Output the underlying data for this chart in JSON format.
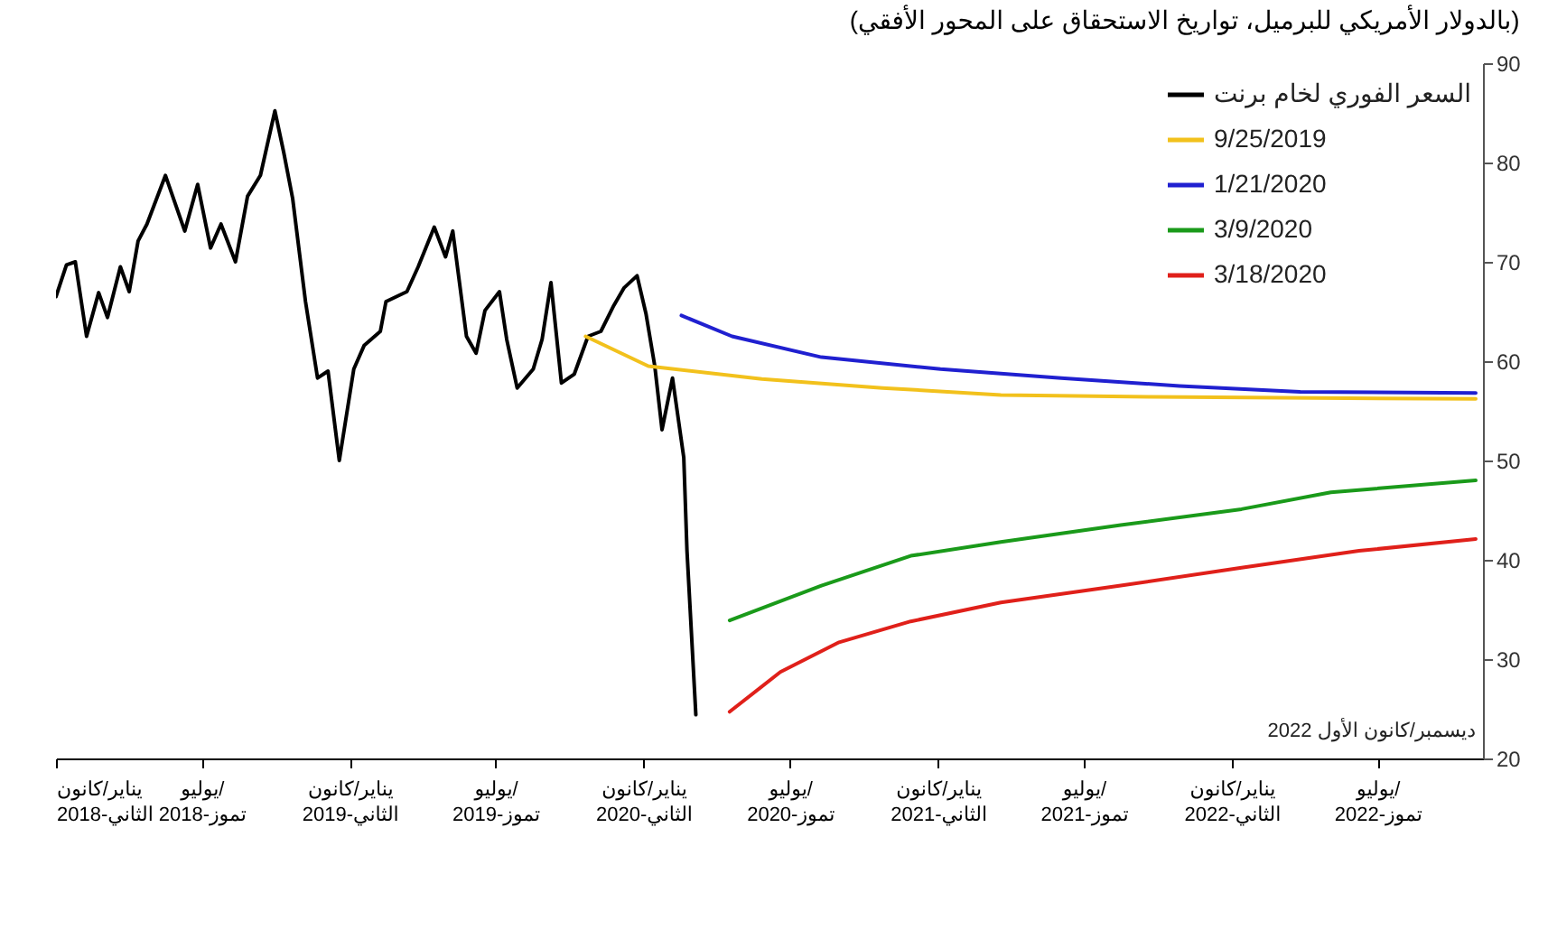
{
  "chart_data": {
    "type": "line",
    "title": "(بالدولار الأمريكي للبرميل، تواريخ الاستحقاق على المحور الأفقي)",
    "annotations": [
      "ديسمبر/كانون الأول 2022"
    ],
    "xlim": [
      "2018-01-01",
      "2022-11-09"
    ],
    "xticks": [
      {
        "value": "2018-01-01",
        "label": "يناير/كانون\nالثاني-2018"
      },
      {
        "value": "2018-07-01",
        "label": "يوليو/\nتموز-2018"
      },
      {
        "value": "2019-01-01",
        "label": "يناير/كانون\nالثاني-2019"
      },
      {
        "value": "2019-07-01",
        "label": "يوليو/\nتموز-2019"
      },
      {
        "value": "2020-01-01",
        "label": "يناير/كانون\nالثاني-2020"
      },
      {
        "value": "2020-07-01",
        "label": "يوليو/\nتموز-2020"
      },
      {
        "value": "2021-01-01",
        "label": "يناير/كانون\nالثاني-2021"
      },
      {
        "value": "2021-07-01",
        "label": "يوليو/\nتموز-2021"
      },
      {
        "value": "2022-01-01",
        "label": "يناير/كانون\nالثاني-2022"
      },
      {
        "value": "2022-07-01",
        "label": "يوليو/\nتموز-2022"
      }
    ],
    "ylim": [
      20,
      90
    ],
    "yticks": [
      20,
      30,
      40,
      50,
      60,
      70,
      80,
      90
    ],
    "grid": false,
    "legend": "top right",
    "series": [
      {
        "name": "السعر الفوري لخام برنت",
        "color": "#000000",
        "x": [
          "2018-01-01",
          "2018-01-14",
          "2018-01-25",
          "2018-02-08",
          "2018-02-23",
          "2018-03-06",
          "2018-03-22",
          "2018-04-02",
          "2018-04-13",
          "2018-04-24",
          "2018-05-17",
          "2018-06-10",
          "2018-06-26",
          "2018-07-12",
          "2018-07-25",
          "2018-08-12",
          "2018-08-27",
          "2018-09-12",
          "2018-09-30",
          "2018-10-11",
          "2018-10-22",
          "2018-11-07",
          "2018-11-22",
          "2018-12-05",
          "2018-12-19",
          "2019-01-06",
          "2019-01-19",
          "2019-02-08",
          "2019-02-15",
          "2019-03-13",
          "2019-03-27",
          "2019-04-16",
          "2019-04-30",
          "2019-05-09",
          "2019-05-26",
          "2019-06-07",
          "2019-06-18",
          "2019-07-06",
          "2019-07-15",
          "2019-07-28",
          "2019-08-17",
          "2019-08-28",
          "2019-09-08",
          "2019-09-21",
          "2019-10-07",
          "2019-10-24",
          "2019-11-09",
          "2019-11-25",
          "2019-12-08",
          "2019-12-24",
          "2020-01-04",
          "2020-01-15",
          "2020-01-24",
          "2020-02-06",
          "2020-02-20",
          "2020-02-24",
          "2020-03-06"
        ],
        "values": [
          66.5,
          69.7,
          70.0,
          62.5,
          66.9,
          64.4,
          69.5,
          67.0,
          72.1,
          73.8,
          78.7,
          73.1,
          77.8,
          71.4,
          73.8,
          70.0,
          76.6,
          78.7,
          85.2,
          81.0,
          76.4,
          66.0,
          58.3,
          59.0,
          50.0,
          59.2,
          61.6,
          63.0,
          66.0,
          67.0,
          69.5,
          73.5,
          70.5,
          73.1,
          62.5,
          60.8,
          65.1,
          67.0,
          62.2,
          57.3,
          59.2,
          62.2,
          67.9,
          57.8,
          58.7,
          62.5,
          63.0,
          65.6,
          67.4,
          68.6,
          64.8,
          59.5,
          53.1,
          58.3,
          50.3,
          40.9,
          24.4
        ]
      },
      {
        "name": "9/25/2019",
        "color": "#f2c11c",
        "x": [
          "2019-10-21",
          "2020-01-07",
          "2020-05-27",
          "2020-10-24",
          "2021-03-20",
          "2021-09-23",
          "2022-10-31"
        ],
        "values": [
          62.5,
          59.5,
          58.2,
          57.3,
          56.6,
          56.4,
          56.2
        ]
      },
      {
        "name": "1/21/2020",
        "color": "#2020d0",
        "x": [
          "2020-02-17",
          "2020-04-20",
          "2020-08-09",
          "2021-01-04",
          "2021-06-03",
          "2021-10-28",
          "2022-03-27",
          "2022-10-31"
        ],
        "values": [
          64.6,
          62.5,
          60.4,
          59.2,
          58.3,
          57.5,
          56.9,
          56.8
        ]
      },
      {
        "name": "3/9/2020",
        "color": "#1a9a1a",
        "x": [
          "2020-04-17",
          "2020-08-09",
          "2020-11-28",
          "2021-03-20",
          "2021-08-16",
          "2022-01-13",
          "2022-05-04",
          "2022-10-31"
        ],
        "values": [
          33.9,
          37.4,
          40.4,
          41.8,
          43.5,
          45.1,
          46.8,
          48.0
        ]
      },
      {
        "name": "3/18/2020",
        "color": "#e0201a",
        "x": [
          "2020-04-17",
          "2020-06-19",
          "2020-08-31",
          "2020-11-28",
          "2021-03-20",
          "2021-08-16",
          "2022-01-13",
          "2022-06-08",
          "2022-10-31"
        ],
        "values": [
          24.7,
          28.7,
          31.7,
          33.8,
          35.7,
          37.4,
          39.2,
          40.9,
          42.1
        ]
      }
    ]
  }
}
